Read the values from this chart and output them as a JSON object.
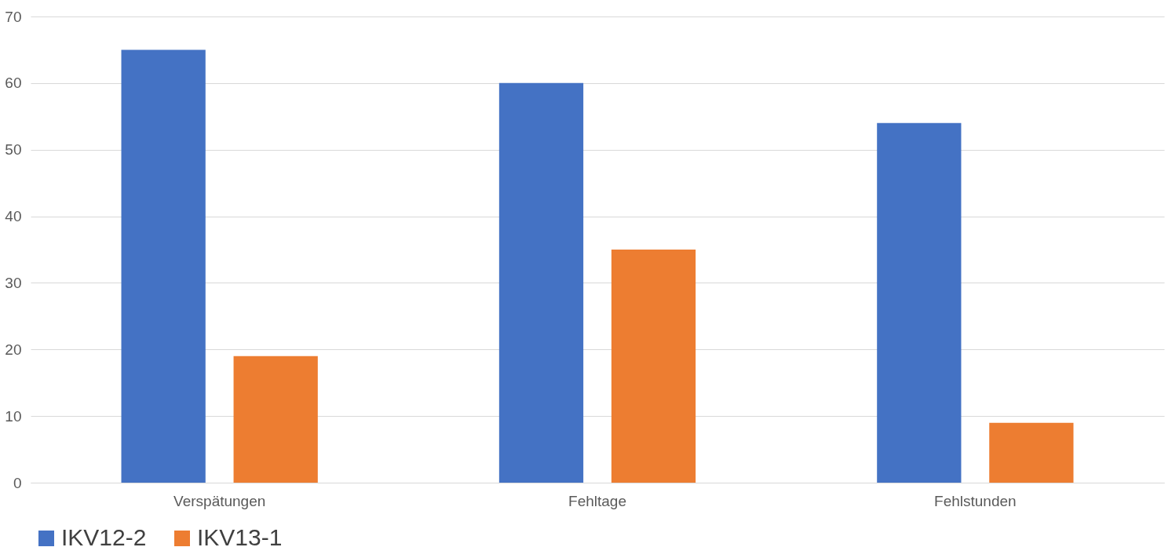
{
  "chart_data": {
    "type": "bar",
    "categories": [
      "Verspätungen",
      "Fehltage",
      "Fehlstunden"
    ],
    "series": [
      {
        "name": "IKV12-2",
        "color": "#4472c4",
        "values": [
          65,
          60,
          54
        ]
      },
      {
        "name": "IKV13-1",
        "color": "#ed7d31",
        "values": [
          19,
          35,
          9
        ]
      }
    ],
    "ylim": [
      0,
      70
    ],
    "yticks": [
      0,
      10,
      20,
      30,
      40,
      50,
      60,
      70
    ],
    "grid": "y",
    "legend": "bottom"
  }
}
